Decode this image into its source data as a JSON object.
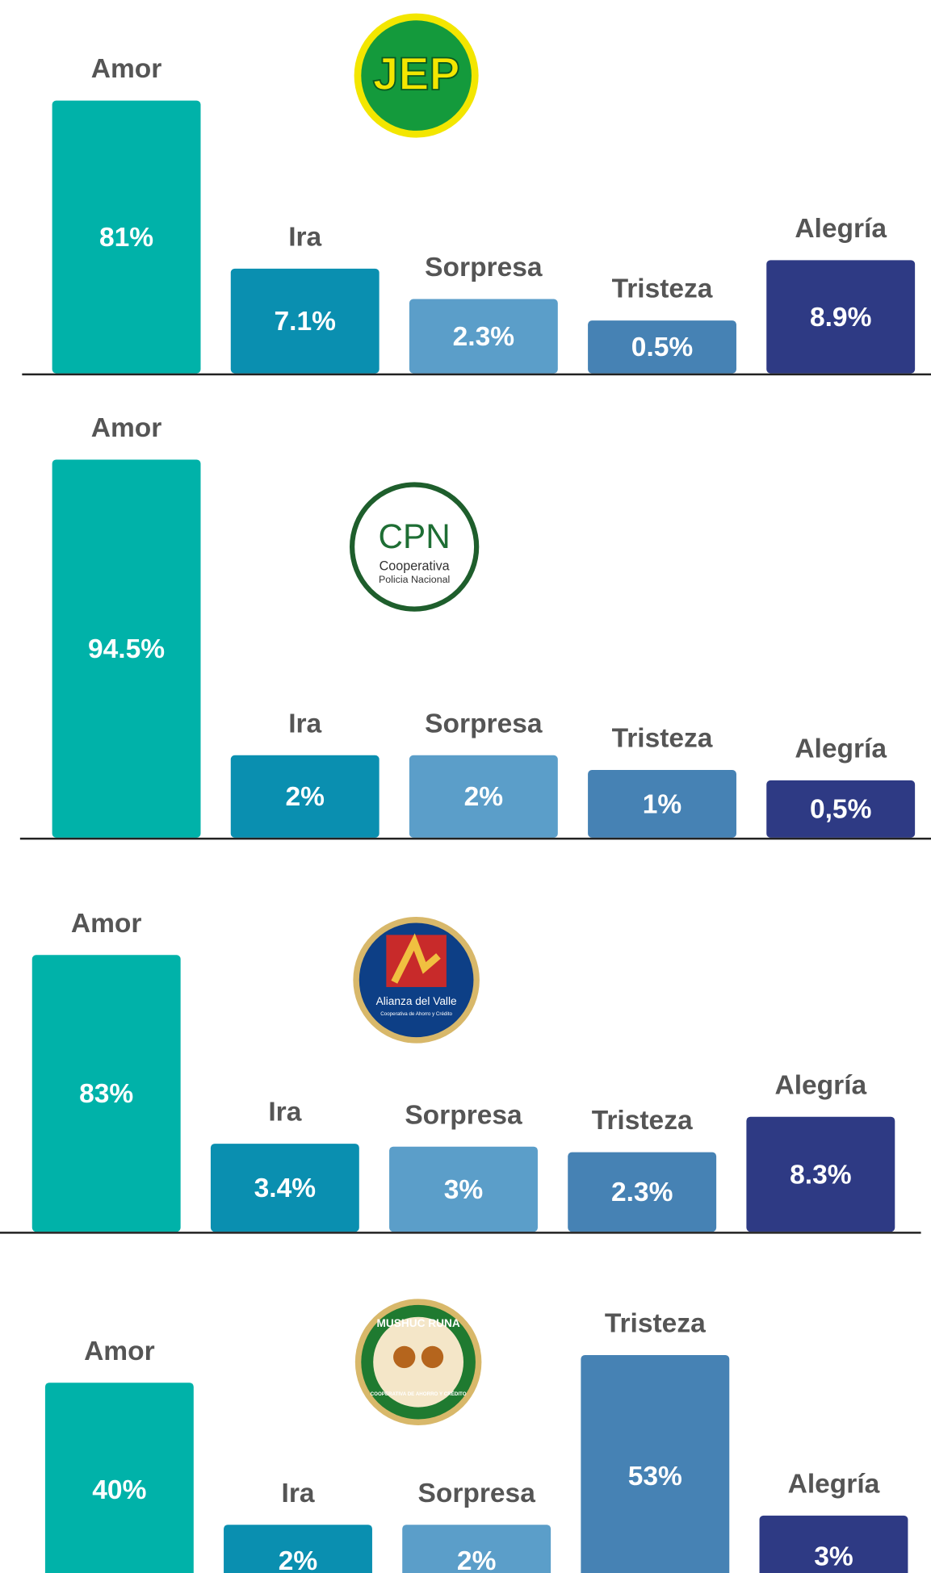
{
  "chart_data": [
    {
      "type": "bar",
      "categories": [
        "Amor",
        "Ira",
        "Sorpresa",
        "Tristeza",
        "Alegría"
      ],
      "values": [
        81,
        7.1,
        2.3,
        0.5,
        8.9
      ],
      "value_labels": [
        "81%",
        "7.1%",
        "2.3%",
        "0.5%",
        "8.9%"
      ],
      "colors": [
        "#00b2a9",
        "#0a8fb0",
        "#5b9ec9",
        "#4682b4",
        "#2e3a84"
      ],
      "logo_text": [
        "JEP"
      ]
    },
    {
      "type": "bar",
      "categories": [
        "Amor",
        "Ira",
        "Sorpresa",
        "Tristeza",
        "Alegría"
      ],
      "values": [
        94.5,
        2,
        2,
        1,
        0.5
      ],
      "value_labels": [
        "94.5%",
        "2%",
        "2%",
        "1%",
        "0,5%"
      ],
      "colors": [
        "#00b2a9",
        "#0a8fb0",
        "#5b9ec9",
        "#4682b4",
        "#2e3a84"
      ],
      "logo_text": [
        "CPN",
        "Cooperativa",
        "Policia Nacional"
      ]
    },
    {
      "type": "bar",
      "categories": [
        "Amor",
        "Ira",
        "Sorpresa",
        "Tristeza",
        "Alegría"
      ],
      "values": [
        83,
        3.4,
        3,
        2.3,
        8.3
      ],
      "value_labels": [
        "83%",
        "3.4%",
        "3%",
        "2.3%",
        "8.3%"
      ],
      "colors": [
        "#00b2a9",
        "#0a8fb0",
        "#5b9ec9",
        "#4682b4",
        "#2e3a84"
      ],
      "logo_text": [
        "Alianza del Valle",
        "Cooperativa de Ahorro y Crédito"
      ]
    },
    {
      "type": "bar",
      "categories": [
        "Amor",
        "Ira",
        "Sorpresa",
        "Tristeza",
        "Alegría"
      ],
      "values": [
        40,
        2,
        2,
        53,
        3
      ],
      "value_labels": [
        "40%",
        "2%",
        "2%",
        "53%",
        "3%"
      ],
      "colors": [
        "#00b2a9",
        "#0a8fb0",
        "#5b9ec9",
        "#4682b4",
        "#2e3a84"
      ],
      "logo_text": [
        "MUSHUC RUNA",
        "COOPERATIVA DE AHORRO Y CRÉDITO"
      ]
    }
  ]
}
